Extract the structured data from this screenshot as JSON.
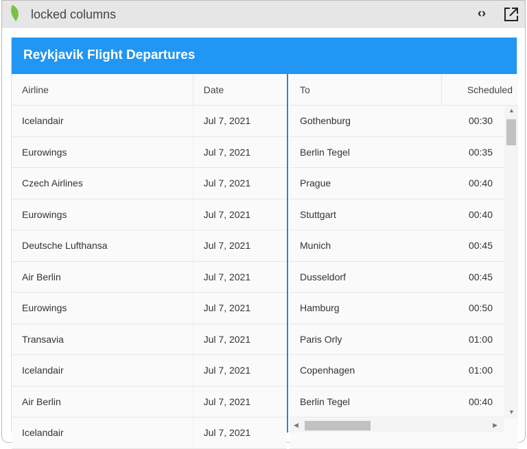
{
  "window": {
    "title": "locked columns",
    "icons": [
      "code-icon",
      "external-link-icon"
    ]
  },
  "grid": {
    "title": "Reykjavik Flight Departures",
    "accent": "#2196f3",
    "locked_columns": [
      "Airline",
      "Date"
    ],
    "scroll_columns": [
      "To",
      "Scheduled"
    ],
    "rows": [
      [
        "Icelandair",
        "Jul 7, 2021",
        "Gothenburg",
        "00:30"
      ],
      [
        "Eurowings",
        "Jul 7, 2021",
        "Berlin Tegel",
        "00:35"
      ],
      [
        "Czech Airlines",
        "Jul 7, 2021",
        "Prague",
        "00:40"
      ],
      [
        "Eurowings",
        "Jul 7, 2021",
        "Stuttgart",
        "00:40"
      ],
      [
        "Deutsche Lufthansa",
        "Jul 7, 2021",
        "Munich",
        "00:45"
      ],
      [
        "Air Berlin",
        "Jul 7, 2021",
        "Dusseldorf",
        "00:45"
      ],
      [
        "Eurowings",
        "Jul 7, 2021",
        "Hamburg",
        "00:50"
      ],
      [
        "Transavia",
        "Jul 7, 2021",
        "Paris Orly",
        "01:00"
      ],
      [
        "Icelandair",
        "Jul 7, 2021",
        "Copenhagen",
        "01:00"
      ],
      [
        "Air Berlin",
        "Jul 7, 2021",
        "Berlin Tegel",
        "00:40"
      ],
      [
        "Icelandair",
        "Jul 7, 2021",
        "",
        ""
      ]
    ]
  }
}
